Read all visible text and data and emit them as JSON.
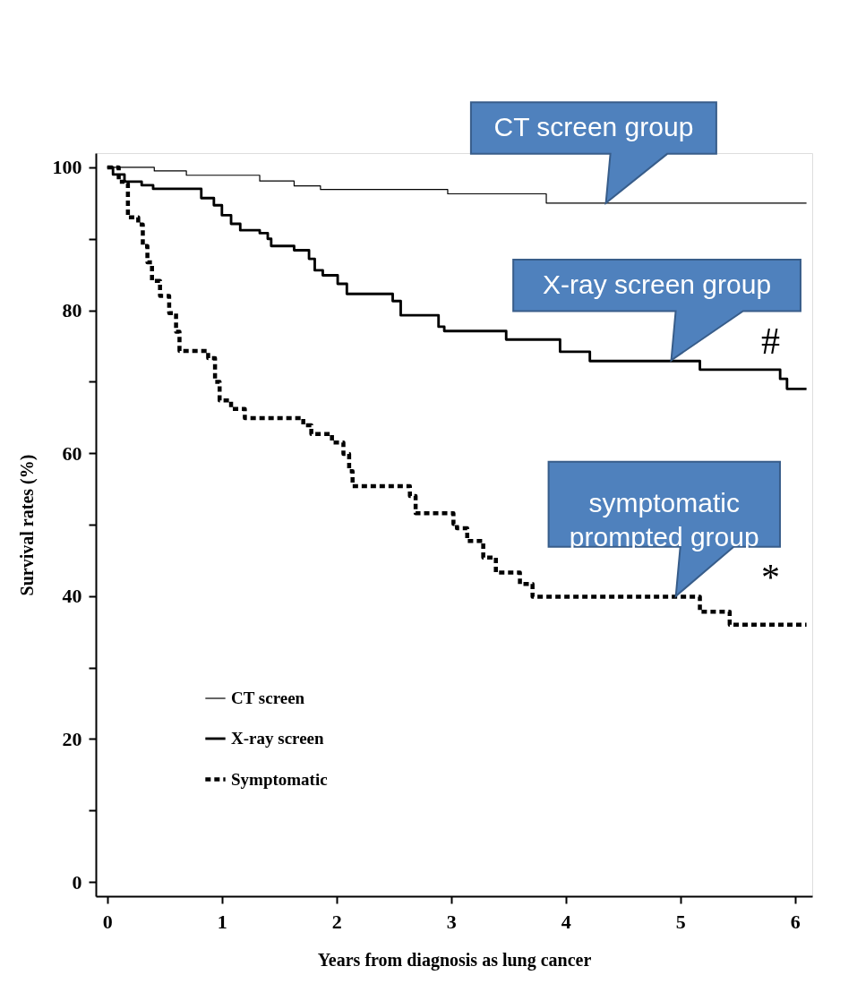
{
  "chart_data": {
    "type": "step",
    "xlabel": "Years from diagnosis as lung cancer",
    "ylabel": "Survival rates (%)",
    "xlim": [
      -0.1,
      6.15
    ],
    "ylim": [
      -2,
      102
    ],
    "xticks": [
      0,
      1,
      2,
      3,
      4,
      5,
      6
    ],
    "yticks": [
      0,
      {
        "value": 10,
        "label": null
      },
      20,
      {
        "value": 30,
        "label": null
      },
      40,
      {
        "value": 50,
        "label": null
      },
      60,
      {
        "value": 70,
        "label": null
      },
      80,
      {
        "value": 90,
        "label": null
      },
      100
    ],
    "grid": false,
    "legend": "bottom left",
    "marker": "none",
    "series": [
      {
        "name": "CT screen",
        "color": "#000000",
        "line_style": "solid",
        "x": [
          0,
          0.41,
          0.69,
          1.33,
          1.63,
          1.86,
          2.97,
          3.83,
          6.1
        ],
        "values": [
          100,
          99.5,
          98.9,
          98.1,
          97.4,
          96.9,
          96.3,
          95,
          95
        ]
      },
      {
        "name": "X-ray screen",
        "color": "#000000",
        "line_style": "solid",
        "x": [
          0,
          0.05,
          0.15,
          0.3,
          0.4,
          0.82,
          0.93,
          1.0,
          1.08,
          1.16,
          1.33,
          1.4,
          1.43,
          1.63,
          1.76,
          1.81,
          1.88,
          2.01,
          2.09,
          2.49,
          2.56,
          2.89,
          2.94,
          3.48,
          3.95,
          4.21,
          5.17,
          5.87,
          5.93,
          6.1
        ],
        "values": [
          100,
          99,
          98,
          97.5,
          97,
          95.7,
          94.7,
          93.3,
          92.1,
          91.2,
          90.8,
          90,
          89,
          88.4,
          87.2,
          85.6,
          84.9,
          83.7,
          82.3,
          81.3,
          79.3,
          77.7,
          77.1,
          75.9,
          74.2,
          72.9,
          71.7,
          70.4,
          69,
          69
        ]
      },
      {
        "name": "Symptomatic",
        "color": "#000000",
        "line_style": "dashed",
        "x": [
          0,
          0.1,
          0.15,
          0.18,
          0.27,
          0.31,
          0.35,
          0.39,
          0.46,
          0.54,
          0.6,
          0.63,
          0.88,
          0.94,
          0.98,
          1.08,
          1.2,
          1.71,
          1.78,
          1.96,
          2.06,
          2.11,
          2.14,
          2.64,
          2.69,
          3.02,
          3.05,
          3.14,
          3.28,
          3.39,
          3.6,
          3.71,
          5.17,
          5.43,
          6.1
        ],
        "values": [
          100,
          98,
          97.7,
          93,
          92,
          89,
          86.7,
          84.1,
          82,
          79.6,
          77,
          74.3,
          73.3,
          70,
          67.4,
          66.2,
          64.9,
          63.9,
          62.7,
          61.5,
          59.9,
          57.5,
          55.4,
          54,
          51.6,
          50.1,
          49.5,
          47.7,
          45.4,
          43.3,
          41.7,
          39.9,
          37.8,
          36,
          36
        ]
      }
    ],
    "annotations": [
      {
        "text": "CT screen group",
        "x": 4.35,
        "y": 95
      },
      {
        "text": "X-ray screen group",
        "x": 4.92,
        "y": 73
      },
      {
        "text": "symptomatic\nprompted group",
        "x": 4.96,
        "y": 40
      },
      "#",
      "*"
    ]
  }
}
